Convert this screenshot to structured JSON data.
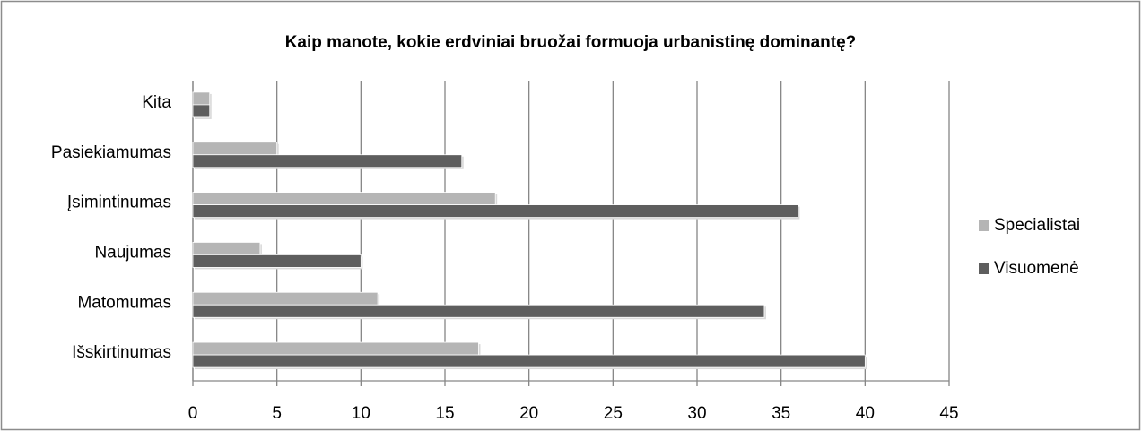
{
  "chart_data": {
    "type": "bar",
    "orientation": "horizontal",
    "title": "Kaip manote, kokie erdviniai bruožai formuoja urbanistinę dominantę?",
    "categories": [
      "Kita",
      "Pasiekiamumas",
      "Įsimintinumas",
      "Naujumas",
      "Matomumas",
      "Išskirtinumas"
    ],
    "series": [
      {
        "name": "Specialistai",
        "color": "#b5b5b5",
        "values": [
          1,
          5,
          18,
          4,
          11,
          17
        ]
      },
      {
        "name": "Visuomenė",
        "color": "#5e5e5e",
        "values": [
          1,
          16,
          36,
          10,
          34,
          40
        ]
      }
    ],
    "xlim": [
      0,
      45
    ],
    "xticks": [
      0,
      5,
      10,
      15,
      20,
      25,
      30,
      35,
      40,
      45
    ],
    "grid": true,
    "legend": "right"
  }
}
